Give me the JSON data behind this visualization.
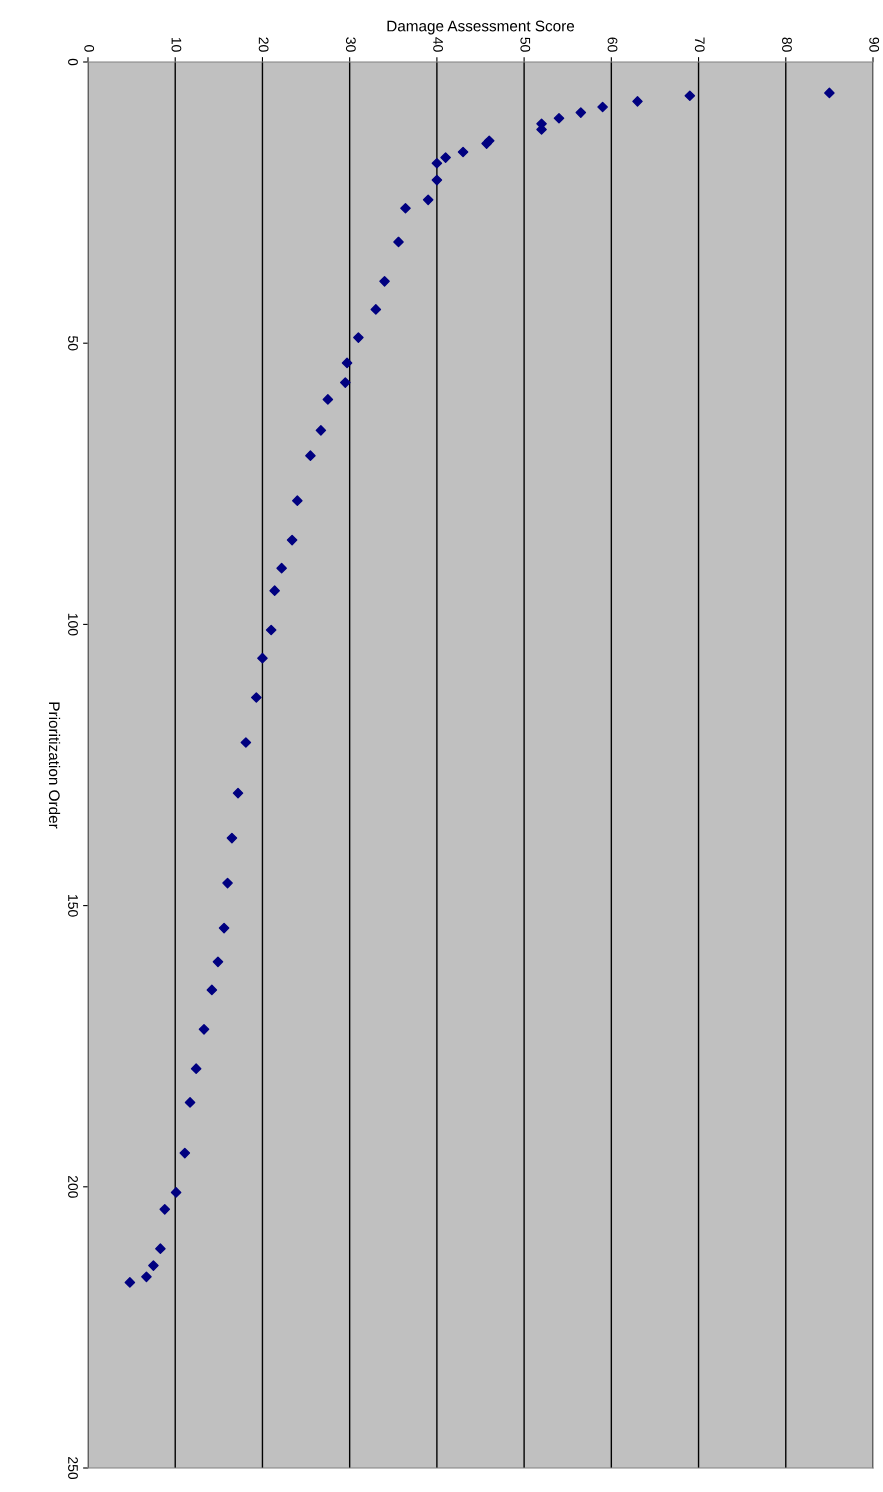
{
  "chart_data": {
    "type": "scatter",
    "xlabel": "Damage Assessment Score",
    "ylabel": "Prioritization Order",
    "x": [
      85,
      69,
      63,
      59,
      56.5,
      54,
      52,
      52,
      46,
      45.7,
      43,
      41,
      40,
      40,
      39,
      36.4,
      35.6,
      34,
      33,
      31,
      29.7,
      29.5,
      27.5,
      26.7,
      25.5,
      24,
      23.4,
      22.2,
      21.4,
      21,
      20,
      19.3,
      18.1,
      17.2,
      16.5,
      16,
      15.6,
      14.9,
      14.2,
      13.3,
      12.4,
      11.7,
      11.1,
      10.1,
      8.8,
      8.3,
      7.5,
      6.7,
      4.8
    ],
    "series": [
      {
        "color": "#000080",
        "values": [
          5.5,
          6,
          7,
          8,
          9,
          10,
          11,
          12,
          14,
          14.5,
          16,
          17,
          18,
          21,
          24.5,
          26,
          32,
          39,
          44,
          49,
          53.5,
          57,
          60,
          65.5,
          70,
          78,
          85,
          90,
          94,
          101,
          106,
          113,
          121,
          130,
          138,
          146,
          154,
          160,
          165,
          172,
          179,
          185,
          194,
          201,
          204,
          211,
          214,
          216,
          217
        ]
      }
    ],
    "xlim": [
      0,
      90
    ],
    "xticks": [
      0,
      10,
      20,
      30,
      40,
      50,
      60,
      70,
      80,
      90
    ],
    "ylim": [
      250,
      0
    ],
    "yticks": [
      0,
      50,
      100,
      150,
      200,
      250
    ],
    "grid": "x",
    "marker": "diamond"
  }
}
